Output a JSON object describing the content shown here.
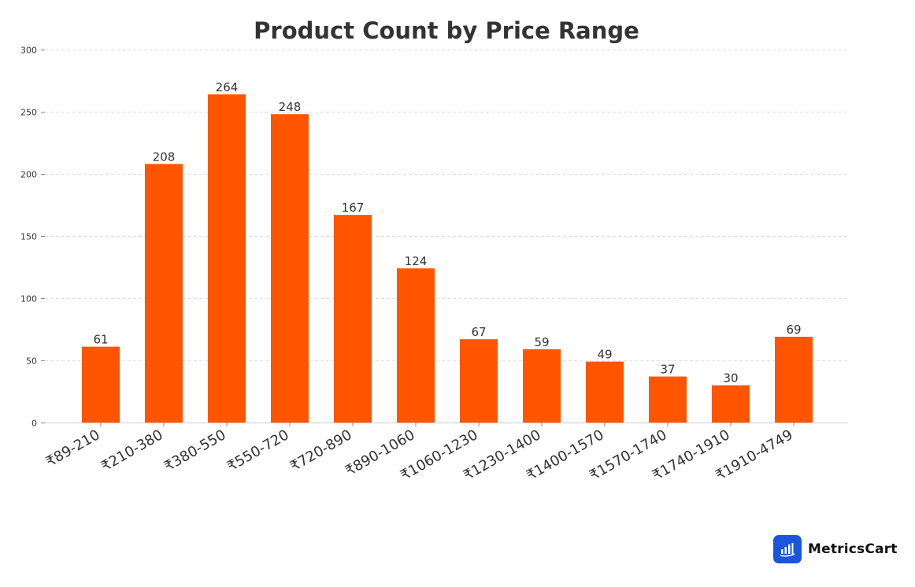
{
  "chart_data": {
    "type": "bar",
    "title": "Product Count by Price Range",
    "xlabel": "",
    "ylabel": "",
    "categories": [
      "₹89-210",
      "₹210-380",
      "₹380-550",
      "₹550-720",
      "₹720-890",
      "₹890-1060",
      "₹1060-1230",
      "₹1230-1400",
      "₹1400-1570",
      "₹1570-1740",
      "₹1740-1910",
      "₹1910-4749"
    ],
    "values": [
      61,
      208,
      264,
      248,
      167,
      124,
      67,
      59,
      49,
      37,
      30,
      69
    ],
    "ylim": [
      0,
      300
    ],
    "yticks": [
      0,
      50,
      100,
      150,
      200,
      250,
      300
    ],
    "bar_color": "#ff5500",
    "grid": "horizontal dashed",
    "data_labels": true
  },
  "brand": {
    "name": "MetricsCart",
    "logo_icon": "bar-chart-logo-icon",
    "logo_color": "#1a56db"
  }
}
